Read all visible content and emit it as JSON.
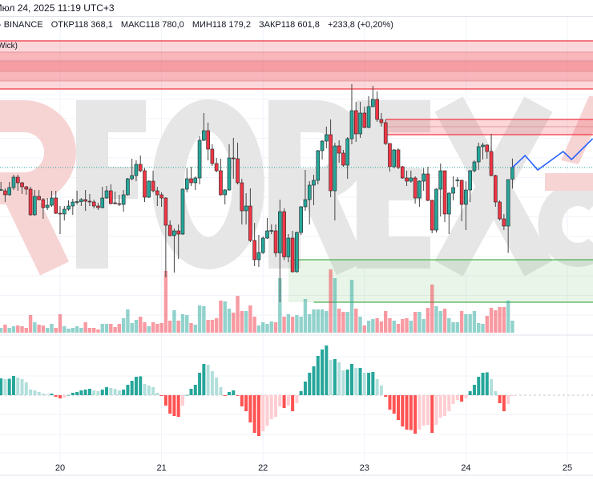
{
  "header": {
    "datetime": "Июл 24, 2025 11:19 UTC+3",
    "exchange": "- BINANCE",
    "open_label": "ОТКР",
    "open": "118 368,1",
    "high_label": "МАКС",
    "high": "118 780,0",
    "low_label": "МИН",
    "low": "118 179,2",
    "close_label": "ЗАКР",
    "close": "118 601,8",
    "change": "+233,8 (+0,20%)"
  },
  "zone_label": "Wick)",
  "watermark": [
    "R",
    "FOREX",
    ".c"
  ],
  "colors": {
    "up": "#26a69a",
    "down": "#f23645",
    "hist_up_strong": "#26a69a",
    "hist_up_weak": "#b2dfdb",
    "hist_down_strong": "#ff5252",
    "hist_down_weak": "#ffcdd2",
    "resistance_zone": "#f23645",
    "support_zone": "#4caf50",
    "projection": "#2962ff",
    "last_price_line": "#26a69a"
  },
  "chart_data": {
    "type": "candlestick",
    "symbol_exchange": "BINANCE",
    "interval": "1h",
    "last_candle_time": "2025-07-24 11:00",
    "x_tick_labels": [
      "20",
      "21",
      "22",
      "23",
      "24",
      "25"
    ],
    "grid": true,
    "last_price": 118601.8,
    "candles_ohlc": [
      [
        118152,
        118312,
        118136,
        118160
      ],
      [
        118136,
        118184,
        117912,
        118056
      ],
      [
        118056,
        118312,
        118040,
        118200
      ],
      [
        118200,
        118456,
        118152,
        118408
      ],
      [
        118408,
        118456,
        118136,
        118296
      ],
      [
        118296,
        118312,
        118072,
        118216
      ],
      [
        118216,
        118232,
        118056,
        118168
      ],
      [
        118168,
        118216,
        117640,
        117656
      ],
      [
        117656,
        118152,
        117640,
        118024
      ],
      [
        118024,
        118152,
        117944,
        117960
      ],
      [
        117960,
        117992,
        117576,
        117800
      ],
      [
        117800,
        117992,
        117752,
        117848
      ],
      [
        117848,
        118136,
        117816,
        117992
      ],
      [
        117992,
        118136,
        117672,
        117688
      ],
      [
        117688,
        117832,
        117272,
        117672
      ],
      [
        117672,
        117832,
        117544,
        117768
      ],
      [
        117768,
        117944,
        117736,
        117832
      ],
      [
        117832,
        117976,
        117656,
        117912
      ],
      [
        117912,
        118136,
        117864,
        117920
      ],
      [
        117920,
        117992,
        117832,
        117960
      ],
      [
        117960,
        118152,
        117736,
        117928
      ],
      [
        117928,
        118072,
        117832,
        117912
      ],
      [
        117912,
        117960,
        117784,
        117832
      ],
      [
        117832,
        117896,
        117752,
        117800
      ],
      [
        117800,
        118216,
        117784,
        117992
      ],
      [
        117992,
        118232,
        117976,
        118136
      ],
      [
        118136,
        118264,
        117864,
        117880
      ],
      [
        117896,
        118120,
        117864,
        117880
      ],
      [
        117880,
        118056,
        117832,
        117864
      ],
      [
        117864,
        118152,
        117720,
        118056
      ],
      [
        118056,
        118392,
        118040,
        118376
      ],
      [
        118376,
        118776,
        118344,
        118440
      ],
      [
        118440,
        118744,
        118328,
        118664
      ],
      [
        118664,
        118840,
        118504,
        118536
      ],
      [
        118536,
        118584,
        117912,
        118008
      ],
      [
        118008,
        118344,
        117992,
        118328
      ],
      [
        118328,
        118536,
        118104,
        118136
      ],
      [
        118136,
        118216,
        117832,
        118056
      ],
      [
        118056,
        118104,
        117816,
        117992
      ],
      [
        117992,
        118008,
        116408,
        117448
      ],
      [
        117448,
        117544,
        117224,
        117240
      ],
      [
        117240,
        117384,
        116504,
        117336
      ],
      [
        117336,
        117464,
        116776,
        117272
      ],
      [
        117272,
        118184,
        117256,
        118168
      ],
      [
        118168,
        118584,
        118104,
        118376
      ],
      [
        118376,
        118616,
        118232,
        118296
      ],
      [
        118296,
        118424,
        118152,
        118392
      ],
      [
        118392,
        119224,
        118264,
        119144
      ],
      [
        119144,
        119688,
        119128,
        119336
      ],
      [
        119336,
        119496,
        118744,
        118968
      ],
      [
        118968,
        119064,
        118632,
        118680
      ],
      [
        118680,
        118792,
        118504,
        118536
      ],
      [
        118536,
        118776,
        118040,
        118056
      ],
      [
        118056,
        118168,
        117864,
        118152
      ],
      [
        118152,
        119064,
        118136,
        118792
      ],
      [
        118792,
        119192,
        118376,
        118784
      ],
      [
        118776,
        119096,
        118264,
        118296
      ],
      [
        118296,
        118376,
        117464,
        117736
      ],
      [
        117736,
        118088,
        117464,
        117832
      ],
      [
        117832,
        118184,
        117112,
        117144
      ],
      [
        117144,
        117496,
        116632,
        116760
      ],
      [
        116760,
        117256,
        116616,
        116904
      ],
      [
        116904,
        117224,
        116872,
        117192
      ],
      [
        117192,
        117592,
        117176,
        117336
      ],
      [
        117336,
        117464,
        117272,
        117344
      ],
      [
        117336,
        117464,
        116816,
        116896
      ],
      [
        116896,
        117960,
        115912,
        117720
      ],
      [
        117720,
        117784,
        116752,
        116816
      ],
      [
        116816,
        117272,
        116712,
        117192
      ],
      [
        117192,
        117336,
        116504,
        116520
      ],
      [
        116520,
        117320,
        116504,
        117304
      ],
      [
        117304,
        117832,
        117256,
        117816
      ],
      [
        117816,
        118552,
        117736,
        117960
      ],
      [
        117960,
        118328,
        117464,
        118248
      ],
      [
        118248,
        118456,
        117848,
        118344
      ],
      [
        118344,
        118952,
        118264,
        118936
      ],
      [
        118936,
        119144,
        118760,
        119128
      ],
      [
        119128,
        119416,
        118984,
        119256
      ],
      [
        119256,
        119560,
        118008,
        118136
      ],
      [
        118136,
        119096,
        117544,
        119032
      ],
      [
        119032,
        119144,
        118696,
        118888
      ],
      [
        118888,
        118952,
        118616,
        118648
      ],
      [
        118648,
        119208,
        118376,
        119176
      ],
      [
        119176,
        120264,
        119064,
        119736
      ],
      [
        119736,
        119912,
        119112,
        119272
      ],
      [
        119272,
        119912,
        119192,
        119688
      ],
      [
        119688,
        119816,
        119384,
        119400
      ],
      [
        119400,
        120024,
        119384,
        119816
      ],
      [
        119816,
        120232,
        119800,
        119960
      ],
      [
        119960,
        120120,
        119512,
        119560
      ],
      [
        119560,
        119688,
        119416,
        119496
      ],
      [
        119496,
        119560,
        119048,
        119080
      ],
      [
        119080,
        119080,
        118520,
        118616
      ],
      [
        118616,
        118968,
        118584,
        118952
      ],
      [
        118952,
        118984,
        118568,
        118600
      ],
      [
        118616,
        118632,
        118376,
        118392
      ],
      [
        118392,
        118536,
        118232,
        118328
      ],
      [
        118328,
        118536,
        118296,
        118392
      ],
      [
        118392,
        118424,
        117880,
        117992
      ],
      [
        117992,
        118344,
        117816,
        118328
      ],
      [
        118328,
        118584,
        118136,
        118472
      ],
      [
        118472,
        118616,
        117928,
        117944
      ],
      [
        117944,
        117960,
        117288,
        117352
      ],
      [
        117352,
        118184,
        117304,
        118168
      ],
      [
        118168,
        118680,
        117624,
        118536
      ],
      [
        118536,
        118536,
        117512,
        117672
      ],
      [
        117672,
        118104,
        117272,
        118088
      ],
      [
        118088,
        118424,
        117944,
        118200
      ],
      [
        118344,
        118408,
        118216,
        118352
      ],
      [
        118344,
        118360,
        117528,
        117864
      ],
      [
        117864,
        118328,
        117352,
        118152
      ],
      [
        118152,
        118552,
        117912,
        118536
      ],
      [
        118536,
        118744,
        118504,
        118712
      ],
      [
        118712,
        119096,
        118552,
        119016
      ],
      [
        119016,
        119096,
        118760,
        119048
      ],
      [
        119048,
        119064,
        118776,
        118920
      ],
      [
        118920,
        119272,
        118424,
        118440
      ],
      [
        118440,
        118456,
        117816,
        117912
      ],
      [
        117912,
        117944,
        117544,
        117576
      ],
      [
        117576,
        117672,
        117352,
        117432
      ],
      [
        117432,
        118360,
        116896,
        118360
      ],
      [
        118368.1,
        118780,
        118179.2,
        118601.8
      ]
    ],
    "volume": [
      6,
      10,
      6,
      8,
      9,
      8,
      6,
      22,
      13,
      10,
      9,
      6,
      11,
      6,
      23,
      8,
      5,
      6,
      8,
      6,
      13,
      6,
      6,
      4,
      11,
      11,
      11,
      7,
      11,
      18,
      29,
      12,
      16,
      20,
      13,
      8,
      13,
      11,
      12,
      77,
      15,
      28,
      15,
      23,
      22,
      12,
      10,
      34,
      33,
      16,
      16,
      18,
      40,
      39,
      30,
      25,
      46,
      27,
      27,
      34,
      20,
      9,
      13,
      11,
      14,
      13,
      68,
      20,
      23,
      20,
      22,
      20,
      42,
      23,
      29,
      29,
      29,
      27,
      79,
      68,
      30,
      26,
      26,
      66,
      30,
      20,
      9,
      15,
      17,
      18,
      14,
      27,
      18,
      15,
      11,
      17,
      18,
      15,
      26,
      26,
      17,
      31,
      60,
      33,
      27,
      30,
      18,
      13,
      13,
      27,
      23,
      23,
      27,
      12,
      11,
      21,
      31,
      28,
      32,
      32,
      40,
      15
    ],
    "histogram": [
      21,
      20,
      20.5,
      24,
      22,
      20,
      16,
      7,
      6,
      4,
      2,
      1,
      2,
      -2,
      -4,
      -3,
      0.3,
      3,
      4,
      6,
      7,
      8,
      6,
      5,
      7,
      10,
      9,
      8,
      6,
      7,
      13,
      18,
      23,
      23.5,
      14,
      12,
      10,
      3,
      -1,
      -13,
      -23,
      -26,
      -27,
      -13,
      0.3,
      8,
      13,
      28,
      39,
      38,
      30,
      22,
      10,
      -1,
      4,
      6,
      -1,
      -14,
      -20,
      -34,
      -47,
      -51,
      -45,
      -38,
      -30,
      -27,
      -14,
      -16,
      -13,
      -20,
      -10,
      5,
      17,
      28,
      36,
      49,
      57,
      62,
      44,
      45,
      41,
      31,
      32,
      39,
      34,
      34,
      28,
      28,
      29,
      20,
      12,
      -2,
      -18,
      -23,
      -31,
      -39,
      -43,
      -43.5,
      -48,
      -43,
      -38,
      -37,
      -47,
      -37,
      -28,
      -26,
      -20,
      -11,
      -6,
      -8,
      -4,
      5,
      13,
      23,
      28,
      28.5,
      20,
      5,
      -10,
      -20,
      -11,
      -1
    ],
    "resistance_zones": [
      {
        "levels": [
          121128,
          120904,
          120728,
          120520,
          120328,
          120168
        ],
        "from": "start"
      },
      {
        "levels": [
          119560,
          119416,
          119256
        ],
        "from": "2025-07-23 05:00"
      }
    ],
    "support_zone": {
      "top": 116760,
      "bottom": 115912,
      "top_from": "2025-07-22 07:00",
      "bottom_from": "2025-07-22 12:00",
      "fill_from": "2025-07-22 06:00"
    },
    "projection": [
      {
        "time": "2025-07-24 11:00",
        "price": 118600
      },
      {
        "time": "2025-07-24 14:00",
        "price": 118840
      },
      {
        "time": "2025-07-24 17:00",
        "price": 118552
      },
      {
        "time": "2025-07-24 23:00",
        "price": 118920
      },
      {
        "time": "2025-07-25 01:00",
        "price": 118760
      },
      {
        "time": "2025-07-25 06:00",
        "price": 119176
      }
    ]
  }
}
